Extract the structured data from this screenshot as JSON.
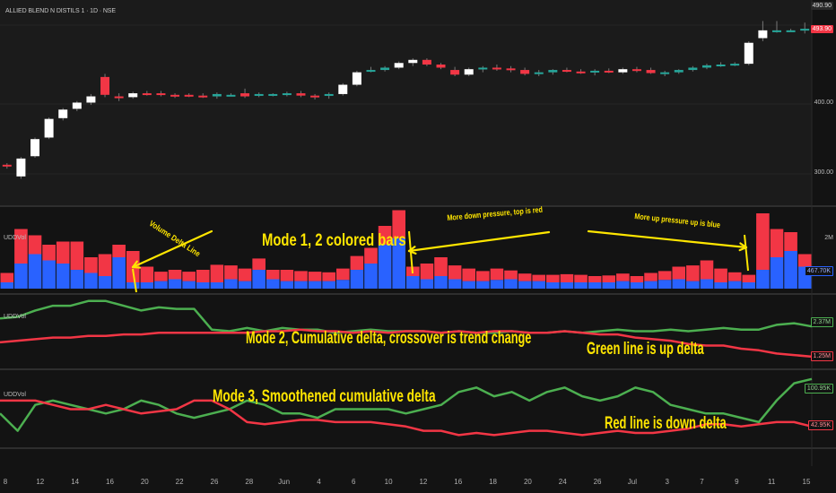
{
  "header": {
    "symbol": "ALLIED BLEND N DISTILS 1 · 1D · NSE"
  },
  "price_axis": {
    "labels": [
      "480.00",
      "400.00",
      "300.00"
    ],
    "last_price_tag": "493.90",
    "top_tag": "490.90"
  },
  "panes": {
    "volume": {
      "label": "UDDVol",
      "axis_top": "2M",
      "value_tag": "467.70K"
    },
    "cumulative": {
      "label": "UDDVol",
      "green_tag": "2.37M",
      "red_tag": "1.25M"
    },
    "smoothed": {
      "label": "UDDVol",
      "green_tag": "100.95K",
      "red_tag": "42.95K"
    }
  },
  "annotations": {
    "volume_delta_line": "Volume Delta Line",
    "mode1": "Mode 1, 2 colored bars",
    "more_down": "More down pressure, top is red",
    "more_up": "More up pressure up is blue",
    "mode2": "Mode 2, Cumulative delta, crossover is trend change",
    "green_line": "Green line is up delta",
    "mode3": "Mode 3, Smoothened cumulative delta",
    "red_line": "Red line is down delta"
  },
  "time_axis": [
    "8",
    "12",
    "14",
    "16",
    "20",
    "22",
    "26",
    "28",
    "Jun",
    "4",
    "6",
    "10",
    "12",
    "16",
    "18",
    "20",
    "24",
    "26",
    "Jul",
    "3",
    "7",
    "9",
    "11",
    "15"
  ],
  "colors": {
    "bg": "#131313",
    "up": "#ffffff",
    "down": "#f23645",
    "teal": "#26a69a",
    "blue": "#2962ff",
    "green": "#4caf50",
    "red": "#f23645",
    "annotation": "#ffe600"
  },
  "chart_data": [
    {
      "type": "candlestick",
      "ylim": [
        275,
        500
      ],
      "candles": [
        [
          311,
          313,
          306,
          309
        ],
        [
          296,
          321,
          293,
          319
        ],
        [
          322,
          346,
          320,
          344
        ],
        [
          346,
          372,
          344,
          370
        ],
        [
          371,
          384,
          368,
          382
        ],
        [
          383,
          393,
          380,
          391
        ],
        [
          391,
          402,
          388,
          399
        ],
        [
          424,
          428,
          398,
          401
        ],
        [
          399,
          403,
          393,
          398
        ],
        [
          398,
          405,
          396,
          403
        ],
        [
          403,
          406,
          400,
          402
        ],
        [
          403,
          406,
          399,
          401
        ],
        [
          401,
          403,
          397,
          400
        ],
        [
          401,
          403,
          398,
          400
        ],
        [
          400,
          403,
          397,
          399
        ],
        [
          399,
          404,
          396,
          402
        ],
        [
          401,
          403,
          399,
          401
        ],
        [
          403,
          409,
          397,
          399
        ],
        [
          400,
          404,
          398,
          402
        ],
        [
          401,
          403,
          399,
          402
        ],
        [
          402,
          405,
          399,
          403
        ],
        [
          403,
          406,
          398,
          400
        ],
        [
          400,
          402,
          395,
          399
        ],
        [
          400,
          404,
          396,
          402
        ],
        [
          402,
          416,
          400,
          414
        ],
        [
          414,
          432,
          412,
          430
        ],
        [
          432,
          437,
          430,
          433
        ],
        [
          433,
          438,
          431,
          436
        ],
        [
          436,
          444,
          434,
          442
        ],
        [
          442,
          448,
          438,
          446
        ],
        [
          446,
          448,
          438,
          440
        ],
        [
          440,
          442,
          434,
          436
        ],
        [
          433,
          437,
          425,
          427
        ],
        [
          427,
          436,
          425,
          434
        ],
        [
          434,
          438,
          430,
          436
        ],
        [
          436,
          440,
          432,
          435
        ],
        [
          435,
          438,
          430,
          433
        ],
        [
          433,
          436,
          426,
          428
        ],
        [
          428,
          433,
          425,
          430
        ],
        [
          430,
          434,
          427,
          433
        ],
        [
          433,
          436,
          430,
          431
        ],
        [
          431,
          434,
          428,
          430
        ],
        [
          430,
          434,
          426,
          432
        ],
        [
          432,
          435,
          429,
          430
        ],
        [
          430,
          436,
          428,
          434
        ],
        [
          434,
          437,
          430,
          433
        ],
        [
          433,
          436,
          428,
          429
        ],
        [
          429,
          432,
          425,
          430
        ],
        [
          430,
          434,
          428,
          433
        ],
        [
          433,
          438,
          431,
          436
        ],
        [
          436,
          441,
          434,
          439
        ],
        [
          439,
          443,
          437,
          440
        ],
        [
          440,
          443,
          438,
          441
        ],
        [
          441,
          470,
          439,
          468
        ],
        [
          474,
          496,
          470,
          484
        ],
        [
          484,
          496,
          481,
          484
        ],
        [
          484,
          486,
          482,
          484
        ],
        [
          484,
          494,
          480,
          486
        ]
      ]
    },
    {
      "type": "bar",
      "title": "Mode 1, 2 colored bars",
      "ylim": [
        0,
        2000000
      ],
      "series": [
        {
          "values": [
            0.15,
            0.55,
            0.3,
            0.25,
            0.35,
            0.45,
            0.25,
            0.35,
            0.2,
            0.5,
            0.25,
            0.15,
            0.15,
            0.15,
            0.2,
            0.28,
            0.22,
            0.2,
            0.18,
            0.15,
            0.18,
            0.16,
            0.15,
            0.14,
            0.18,
            0.22,
            0.25,
            0.3,
            0.45,
            0.15,
            0.25,
            0.3,
            0.22,
            0.2,
            0.16,
            0.18,
            0.14,
            0.12,
            0.1,
            0.12,
            0.13,
            0.12,
            0.1,
            0.11,
            0.12,
            0.1,
            0.13,
            0.14,
            0.2,
            0.25,
            0.3,
            0.22,
            0.14,
            0.12,
            0.9,
            0.45,
            0.3,
            0.2
          ]
        },
        {
          "values": [
            0.1,
            0.4,
            0.55,
            0.45,
            0.4,
            0.3,
            0.25,
            0.2,
            0.5,
            0.1,
            0.1,
            0.12,
            0.15,
            0.12,
            0.1,
            0.1,
            0.15,
            0.12,
            0.3,
            0.15,
            0.12,
            0.12,
            0.12,
            0.12,
            0.14,
            0.3,
            0.4,
            0.7,
            0.8,
            0.2,
            0.15,
            0.2,
            0.15,
            0.12,
            0.12,
            0.14,
            0.15,
            0.12,
            0.12,
            0.1,
            0.1,
            0.1,
            0.1,
            0.1,
            0.12,
            0.1,
            0.12,
            0.14,
            0.15,
            0.12,
            0.15,
            0.1,
            0.12,
            0.1,
            0.3,
            0.5,
            0.6,
            0.35
          ]
        }
      ]
    },
    {
      "type": "line",
      "title": "Mode 2, Cumulative delta, crossover is trend change",
      "series": [
        {
          "values": [
            2.7,
            2.75,
            2.95,
            3.1,
            3.1,
            3.25,
            3.25,
            3.1,
            2.95,
            3.05,
            3.0,
            3.0,
            2.35,
            2.3,
            2.4,
            2.3,
            2.4,
            2.35,
            2.35,
            2.25,
            2.3,
            2.35,
            2.3,
            2.3,
            2.3,
            2.25,
            2.3,
            2.25,
            2.25,
            2.3,
            2.25,
            2.25,
            2.3,
            2.25,
            2.3,
            2.35,
            2.3,
            2.3,
            2.35,
            2.3,
            2.35,
            2.4,
            2.35,
            2.35,
            2.5,
            2.55,
            2.45
          ]
        },
        {
          "values": [
            1.95,
            2.0,
            2.05,
            2.1,
            2.1,
            2.15,
            2.15,
            2.2,
            2.2,
            2.25,
            2.25,
            2.25,
            2.25,
            2.25,
            2.25,
            2.3,
            2.3,
            2.35,
            2.3,
            2.3,
            2.25,
            2.3,
            2.25,
            2.3,
            2.3,
            2.25,
            2.3,
            2.25,
            2.3,
            2.3,
            2.25,
            2.25,
            2.3,
            2.25,
            2.2,
            2.2,
            2.1,
            2.05,
            2.0,
            1.9,
            1.85,
            1.85,
            1.75,
            1.7,
            1.6,
            1.55,
            1.5
          ]
        }
      ]
    },
    {
      "type": "line",
      "title": "Mode 3, Smoothened cumulative delta",
      "series": [
        {
          "values": [
            1.0,
            0.6,
            1.2,
            1.3,
            1.2,
            1.1,
            1.0,
            1.1,
            1.3,
            1.2,
            1.0,
            0.9,
            1.0,
            1.1,
            1.3,
            1.2,
            1.0,
            1.0,
            0.9,
            1.1,
            1.1,
            1.1,
            1.1,
            1.0,
            1.1,
            1.2,
            1.5,
            1.6,
            1.4,
            1.5,
            1.3,
            1.5,
            1.6,
            1.4,
            1.3,
            1.4,
            1.6,
            1.5,
            1.2,
            1.1,
            1.0,
            1.0,
            0.9,
            0.8,
            1.3,
            1.7,
            1.8
          ]
        },
        {
          "values": [
            1.3,
            1.3,
            1.3,
            1.2,
            1.1,
            1.1,
            1.2,
            1.1,
            1.0,
            1.05,
            1.1,
            1.3,
            1.3,
            1.1,
            0.8,
            0.75,
            0.8,
            0.85,
            0.85,
            0.8,
            0.8,
            0.8,
            0.75,
            0.7,
            0.6,
            0.6,
            0.5,
            0.55,
            0.5,
            0.55,
            0.6,
            0.6,
            0.55,
            0.5,
            0.55,
            0.6,
            0.55,
            0.55,
            0.6,
            0.65,
            0.75,
            0.75,
            0.7,
            0.75,
            0.8,
            0.8,
            0.7
          ]
        }
      ]
    }
  ]
}
